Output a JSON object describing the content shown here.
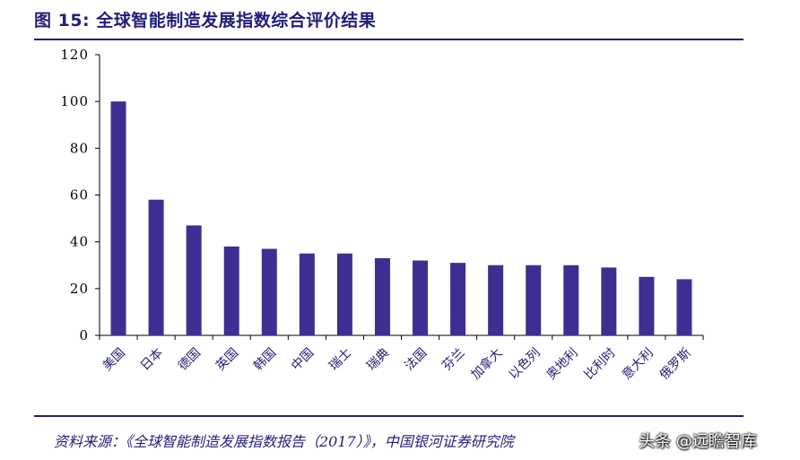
{
  "header": {
    "title": "图 15: 全球智能制造发展指数综合评价结果"
  },
  "footer": {
    "source": "资料来源：《全球智能制造发展指数报告（2017）》，中国银河证券研究院",
    "watermark": "头条 @远瞻智库"
  },
  "colors": {
    "bar": "#3D2F91",
    "accent": "#1F1F78",
    "axis": "#000000"
  },
  "chart_data": {
    "type": "bar",
    "title": "",
    "xlabel": "",
    "ylabel": "",
    "ylim": [
      0,
      120
    ],
    "yticks": [
      0,
      20,
      40,
      60,
      80,
      100,
      120
    ],
    "grid": false,
    "categories": [
      "美国",
      "日本",
      "德国",
      "英国",
      "韩国",
      "中国",
      "瑞士",
      "瑞典",
      "法国",
      "芬兰",
      "加拿大",
      "以色列",
      "奥地利",
      "比利时",
      "意大利",
      "俄罗斯"
    ],
    "values": [
      100,
      58,
      47,
      38,
      37,
      35,
      35,
      33,
      32,
      31,
      30,
      30,
      30,
      29,
      25,
      24
    ]
  }
}
